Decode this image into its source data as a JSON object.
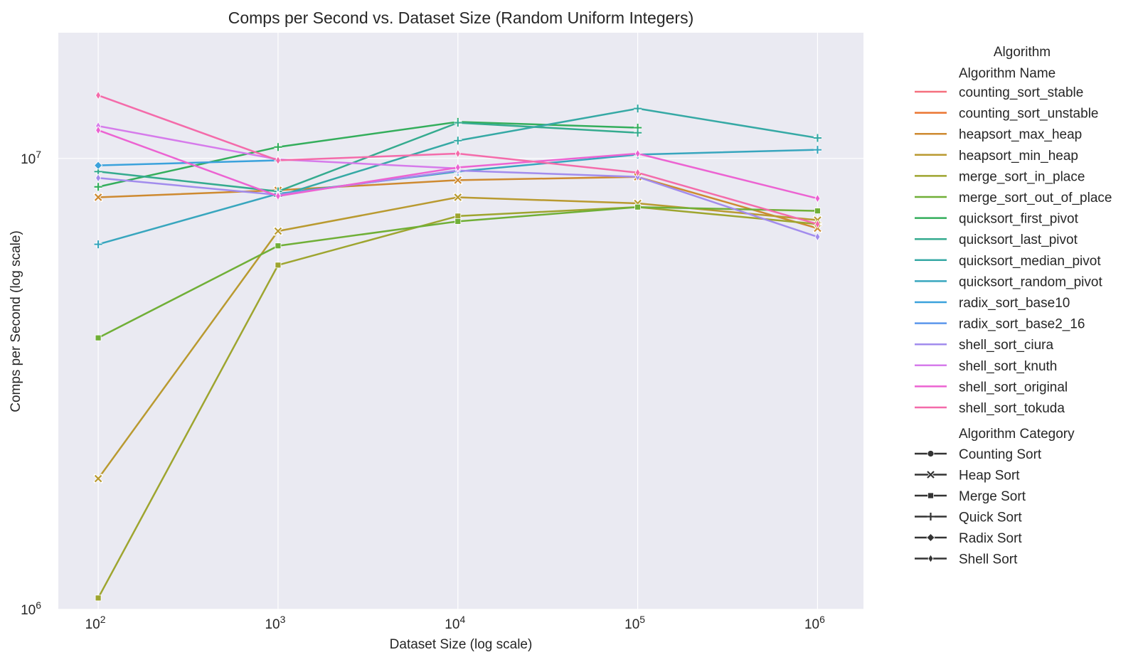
{
  "colors": {
    "plot_background": "#EAEAF2",
    "grid": "#FFFFFF",
    "text": "#262626"
  },
  "chart_data": {
    "type": "line",
    "title": "Comps per Second vs. Dataset Size (Random Uniform Integers)",
    "xlabel": "Dataset Size (log scale)",
    "ylabel": "Comps per Second (log scale)",
    "xscale": "log",
    "yscale": "log",
    "x": [
      100,
      1000,
      10000,
      100000,
      1000000
    ],
    "xlim": [
      60,
      1800000
    ],
    "ylim": [
      1000000,
      19000000
    ],
    "x_ticks": [
      {
        "value": 100,
        "base": "10",
        "exp": "2"
      },
      {
        "value": 1000,
        "base": "10",
        "exp": "3"
      },
      {
        "value": 10000,
        "base": "10",
        "exp": "4"
      },
      {
        "value": 100000,
        "base": "10",
        "exp": "5"
      },
      {
        "value": 1000000,
        "base": "10",
        "exp": "6"
      }
    ],
    "y_ticks": [
      {
        "value": 1000000,
        "base": "10",
        "exp": "6"
      },
      {
        "value": 10000000,
        "base": "10",
        "exp": "7"
      }
    ],
    "grid": true,
    "legend_position": "outside-right",
    "legend": {
      "title": "Algorithm",
      "name_header": "Algorithm Name",
      "category_header": "Algorithm Category",
      "categories": [
        {
          "name": "Counting Sort",
          "marker": "circle"
        },
        {
          "name": "Heap Sort",
          "marker": "x"
        },
        {
          "name": "Merge Sort",
          "marker": "square"
        },
        {
          "name": "Quick Sort",
          "marker": "plus"
        },
        {
          "name": "Radix Sort",
          "marker": "diamond"
        },
        {
          "name": "Shell Sort",
          "marker": "thin_diamond"
        }
      ]
    },
    "series": [
      {
        "name": "counting_sort_stable",
        "color": "#F5707E",
        "marker": "circle",
        "values": [
          null,
          null,
          null,
          null,
          null
        ]
      },
      {
        "name": "counting_sort_unstable",
        "color": "#EB7530",
        "marker": "circle",
        "values": [
          null,
          null,
          null,
          null,
          null
        ]
      },
      {
        "name": "heapsort_max_heap",
        "color": "#CE8A31",
        "marker": "x",
        "values": [
          8200000,
          8500000,
          8950000,
          9100000,
          7000000
        ]
      },
      {
        "name": "heapsort_min_heap",
        "color": "#B99A30",
        "marker": "x",
        "values": [
          1950000,
          6900000,
          8200000,
          7950000,
          7300000
        ]
      },
      {
        "name": "merge_sort_in_place",
        "color": "#9EA52F",
        "marker": "square",
        "values": [
          1060000,
          5800000,
          7450000,
          7800000,
          7150000
        ]
      },
      {
        "name": "merge_sort_out_of_place",
        "color": "#70AF37",
        "marker": "square",
        "values": [
          4000000,
          6400000,
          7250000,
          7800000,
          7650000
        ]
      },
      {
        "name": "quicksort_first_pivot",
        "color": "#34AE5C",
        "marker": "plus",
        "values": [
          8650000,
          10600000,
          12050000,
          11700000,
          null
        ]
      },
      {
        "name": "quicksort_last_pivot",
        "color": "#35AB8F",
        "marker": "plus",
        "values": [
          9350000,
          8450000,
          12000000,
          11400000,
          null
        ]
      },
      {
        "name": "quicksort_median_pivot",
        "color": "#36A9A5",
        "marker": "plus",
        "values": [
          null,
          8250000,
          10950000,
          12900000,
          11100000
        ]
      },
      {
        "name": "quicksort_random_pivot",
        "color": "#38A6BE",
        "marker": "plus",
        "values": [
          6450000,
          8350000,
          9350000,
          10200000,
          10450000
        ]
      },
      {
        "name": "radix_sort_base10",
        "color": "#3BA2DC",
        "marker": "diamond",
        "values": [
          9650000,
          9900000,
          null,
          null,
          null
        ]
      },
      {
        "name": "radix_sort_base2_16",
        "color": "#5C97EC",
        "marker": "diamond",
        "values": [
          null,
          null,
          null,
          null,
          null
        ]
      },
      {
        "name": "shell_sort_ciura",
        "color": "#A28CED",
        "marker": "thin_diamond",
        "values": [
          9050000,
          8300000,
          9400000,
          9100000,
          6700000
        ]
      },
      {
        "name": "shell_sort_knuth",
        "color": "#D67BEB",
        "marker": "thin_diamond",
        "values": [
          11800000,
          9950000,
          9500000,
          null,
          null
        ]
      },
      {
        "name": "shell_sort_original",
        "color": "#EC63D2",
        "marker": "thin_diamond",
        "values": [
          11550000,
          8250000,
          9550000,
          10250000,
          8150000
        ]
      },
      {
        "name": "shell_sort_tokuda",
        "color": "#F46BAA",
        "marker": "thin_diamond",
        "values": [
          13800000,
          9900000,
          10250000,
          9300000,
          7150000
        ]
      }
    ]
  }
}
